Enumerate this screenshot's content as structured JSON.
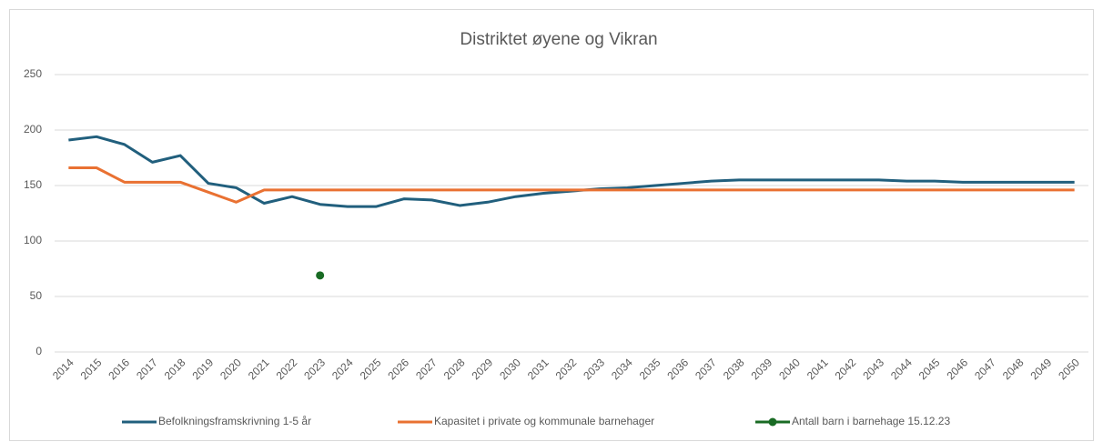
{
  "chart_data": {
    "type": "line",
    "title": "Distriktet øyene og Vikran",
    "categories": [
      "2014",
      "2015",
      "2016",
      "2017",
      "2018",
      "2019",
      "2020",
      "2021",
      "2022",
      "2023",
      "2024",
      "2025",
      "2026",
      "2027",
      "2028",
      "2029",
      "2030",
      "2031",
      "2032",
      "2033",
      "2034",
      "2035",
      "2036",
      "2037",
      "2038",
      "2039",
      "2040",
      "2041",
      "2042",
      "2043",
      "2044",
      "2045",
      "2046",
      "2047",
      "2048",
      "2049",
      "2050"
    ],
    "series": [
      {
        "name": "Befolkningsframskrivning 1-5 år",
        "color": "#215f7d",
        "values": [
          191,
          194,
          187,
          171,
          177,
          152,
          148,
          134,
          140,
          133,
          131,
          131,
          138,
          137,
          132,
          135,
          140,
          143,
          145,
          147,
          148,
          150,
          152,
          154,
          155,
          155,
          155,
          155,
          155,
          155,
          154,
          154,
          153,
          153,
          153,
          153,
          153
        ]
      },
      {
        "name": "Kapasitet i private og kommunale barnehager",
        "color": "#e97132",
        "values": [
          166,
          166,
          153,
          153,
          153,
          144,
          135,
          146,
          146,
          146,
          146,
          146,
          146,
          146,
          146,
          146,
          146,
          146,
          146,
          146,
          146,
          146,
          146,
          146,
          146,
          146,
          146,
          146,
          146,
          146,
          146,
          146,
          146,
          146,
          146,
          146,
          146
        ]
      },
      {
        "name": "Antall barn i barnehage 15.12.23",
        "color": "#196b24",
        "marker": true,
        "values": [
          null,
          null,
          null,
          null,
          null,
          null,
          null,
          null,
          null,
          69,
          null,
          null,
          null,
          null,
          null,
          null,
          null,
          null,
          null,
          null,
          null,
          null,
          null,
          null,
          null,
          null,
          null,
          null,
          null,
          null,
          null,
          null,
          null,
          null,
          null,
          null,
          null
        ]
      }
    ],
    "ylim": [
      0,
      250
    ],
    "yticks": [
      0,
      50,
      100,
      150,
      200,
      250
    ],
    "grid": true,
    "legend": "bottom"
  }
}
